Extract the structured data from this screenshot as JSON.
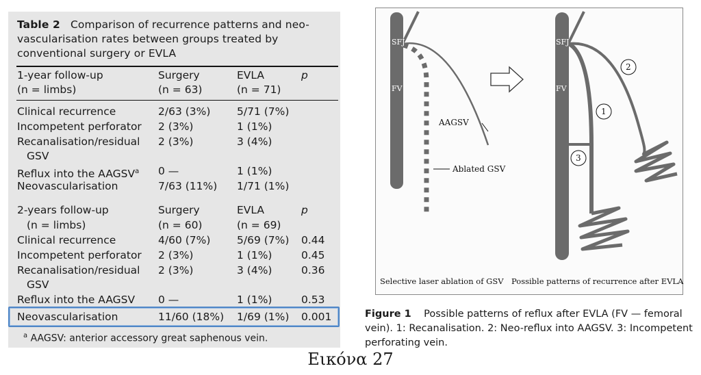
{
  "table": {
    "caption_label": "Table 2",
    "caption_text": "Comparison of recurrence patterns and neo-vascularisation rates between groups treated by conventional surgery or EVLA",
    "section1": {
      "header": [
        "1-year follow-up",
        "Surgery",
        "EVLA",
        "p"
      ],
      "subheader": [
        "(n = limbs)",
        "(n = 63)",
        "(n = 71)",
        ""
      ],
      "rows": [
        [
          "Clinical recurrence",
          "2/63 (3%)",
          "5/71 (7%)",
          ""
        ],
        [
          "Incompetent perforator",
          "2 (3%)",
          "1 (1%)",
          ""
        ],
        [
          "Recanalisation/residual",
          "2 (3%)",
          "3 (4%)",
          ""
        ],
        [
          "GSV",
          "",
          "",
          ""
        ],
        [
          "Reflux into the AAGSV",
          "0 —",
          "1 (1%)",
          ""
        ],
        [
          "Neovascularisation",
          "7/63 (11%)",
          "1/71 (1%)",
          ""
        ]
      ],
      "reflux_superscript": "a"
    },
    "section2": {
      "header": [
        "2-years follow-up",
        "Surgery",
        "EVLA",
        "p"
      ],
      "subheader": [
        "(n = limbs)",
        "(n = 60)",
        "(n = 69)",
        ""
      ],
      "rows": [
        [
          "Clinical recurrence",
          "4/60 (7%)",
          "5/69 (7%)",
          "0.44"
        ],
        [
          "Incompetent perforator",
          "2 (3%)",
          "1 (1%)",
          "0.45"
        ],
        [
          "Recanalisation/residual",
          "2 (3%)",
          "3 (4%)",
          "0.36"
        ],
        [
          "GSV",
          "",
          "",
          ""
        ],
        [
          "Reflux into the AAGSV",
          "0 —",
          "1 (1%)",
          "0.53"
        ],
        [
          "Neovascularisation",
          "11/60 (18%)",
          "1/69 (1%)",
          "0.001"
        ]
      ]
    },
    "footnote_mark": "a",
    "footnote_text": "AAGSV: anterior accessory great saphenous vein."
  },
  "figure": {
    "labels": {
      "sfj_left": "SFJ",
      "fv_left": "FV",
      "aagsv": "AAGSV",
      "ablated": "Ablated GSV",
      "sfj_right": "SFJ",
      "fv_right": "FV",
      "num1": "1",
      "num2": "2",
      "num3": "3"
    },
    "bottom_left": "Selective laser ablation of GSV",
    "bottom_right": "Possible patterns of recurrence after EVLA",
    "caption_label": "Figure 1",
    "caption_text": "Possible patterns of reflux after EVLA (FV — femoral vein). 1: Recanalisation. 2: Neo-reflux into AAGSV. 3: Incompetent perforating vein."
  },
  "slide_caption": "Εικόνα 27",
  "colors": {
    "vein": "#6b6b6b",
    "highlight": "#4f86c6",
    "panel": "#e6e6e6"
  }
}
